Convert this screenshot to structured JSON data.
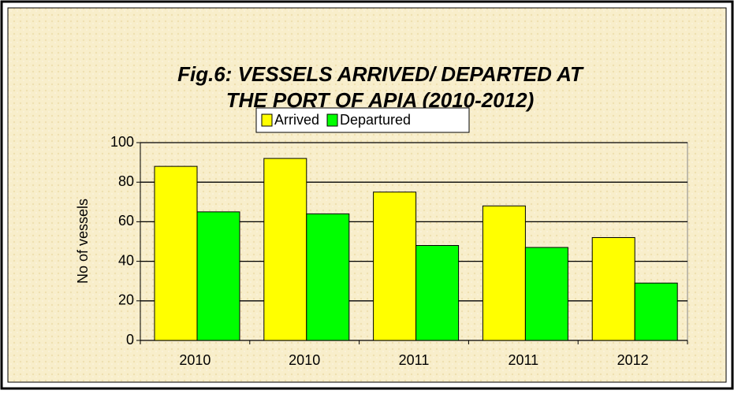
{
  "chart_data": {
    "type": "bar",
    "title": [
      "Fig.6: VESSELS ARRIVED/ DEPARTED AT",
      "THE PORT OF APIA (2010-2012)"
    ],
    "y_label": "No of vessels",
    "categories": [
      "2010",
      "2010",
      "2011",
      "2011",
      "2012"
    ],
    "series": [
      {
        "name": "Arrived",
        "color": "#ffff00",
        "values": [
          88,
          92,
          75,
          68,
          52
        ]
      },
      {
        "name": "Departured",
        "color": "#00ff00",
        "values": [
          65,
          64,
          48,
          47,
          29
        ]
      }
    ],
    "ylim": [
      0,
      100
    ],
    "yticks": [
      0,
      20,
      40,
      60,
      80,
      100
    ],
    "grid": true,
    "legend": "top"
  }
}
